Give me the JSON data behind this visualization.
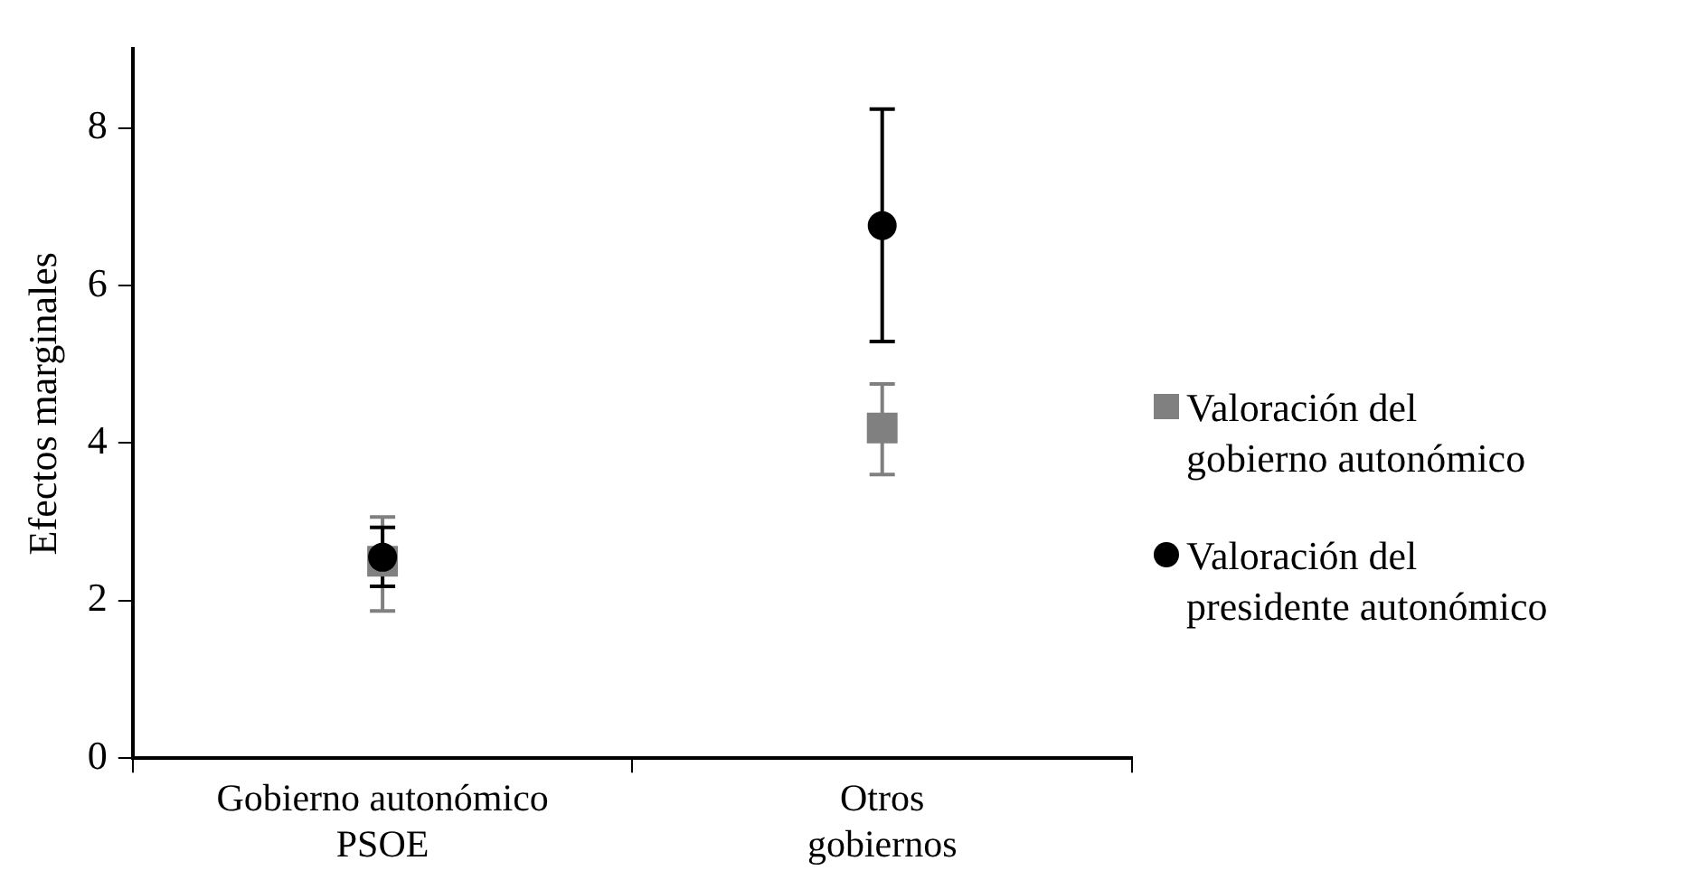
{
  "chart_data": {
    "type": "scatter",
    "ylabel": "Efectos marginales",
    "categories": [
      "Gobierno autonómico PSOE",
      "Otros gobiernos"
    ],
    "ylim": [
      0,
      9
    ],
    "yticks": [
      0,
      2,
      4,
      6,
      8
    ],
    "grid": false,
    "legend": "right",
    "series": [
      {
        "name": "Valoración del gobierno autonómico",
        "color": "#808080",
        "marker": "square",
        "values": [
          2.5,
          4.19
        ],
        "errors": [
          [
            1.87,
            3.06
          ],
          [
            3.6,
            4.75
          ]
        ]
      },
      {
        "name": "Valoración del presidente autonómico",
        "color": "#000000",
        "marker": "circle",
        "values": [
          2.55,
          6.76
        ],
        "errors": [
          [
            2.18,
            2.93
          ],
          [
            5.29,
            8.24
          ]
        ]
      }
    ]
  }
}
